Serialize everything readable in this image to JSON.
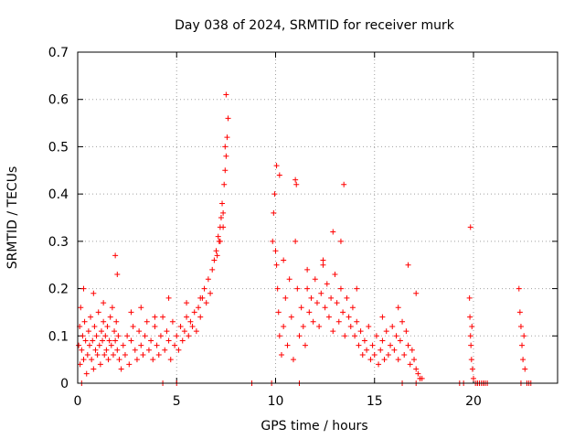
{
  "chart_data": {
    "type": "scatter",
    "title": "Day 038 of 2024, SRMTID for receiver murk",
    "xlabel": "GPS time / hours",
    "ylabel": "SRMTID / TECUs",
    "xlim": [
      0,
      24.25
    ],
    "ylim": [
      0,
      0.7
    ],
    "xticks": [
      0,
      5,
      10,
      15,
      20
    ],
    "xtick_labels": [
      "0",
      "5",
      "10",
      "15",
      "20"
    ],
    "yticks": [
      0,
      0.1,
      0.2,
      0.3,
      0.4,
      0.5,
      0.6,
      0.7
    ],
    "ytick_labels": [
      "0",
      "0.1",
      "0.2",
      "0.3",
      "0.4",
      "0.5",
      "0.6",
      "0.7"
    ],
    "grid": true,
    "marker": "plus",
    "colors": {
      "points": "#ff0000",
      "grid": "#a0a0a0",
      "axes": "#000000"
    },
    "series": [
      {
        "name": "SRMTID",
        "x": [
          0.05,
          0.1,
          0.12,
          0.15,
          0.2,
          0.25,
          0.3,
          0.35,
          0.4,
          0.45,
          0.5,
          0.55,
          0.6,
          0.65,
          0.7,
          0.75,
          0.8,
          0.85,
          0.9,
          0.95,
          1.0,
          1.05,
          1.1,
          1.15,
          1.2,
          1.25,
          1.3,
          1.35,
          1.4,
          1.45,
          1.5,
          1.55,
          1.6,
          1.65,
          1.7,
          1.75,
          1.8,
          1.85,
          1.9,
          1.95,
          2.0,
          2.05,
          2.1,
          2.2,
          2.3,
          2.4,
          2.5,
          2.6,
          2.7,
          2.8,
          2.9,
          3.0,
          3.1,
          3.2,
          3.3,
          3.4,
          3.5,
          3.6,
          3.7,
          3.8,
          3.9,
          4.0,
          4.1,
          4.2,
          4.3,
          4.4,
          4.5,
          4.6,
          4.7,
          4.8,
          4.9,
          5.0,
          5.1,
          5.2,
          5.3,
          5.4,
          5.5,
          5.6,
          5.7,
          5.8,
          5.9,
          6.0,
          6.1,
          6.2,
          6.3,
          6.4,
          6.5,
          6.6,
          6.7,
          6.8,
          6.9,
          7.0,
          7.05,
          7.1,
          7.15,
          7.2,
          7.25,
          7.3,
          7.35,
          7.4,
          7.45,
          7.5,
          7.55,
          7.6,
          9.85,
          9.9,
          9.95,
          10.0,
          10.05,
          10.1,
          10.15,
          10.2,
          10.3,
          10.4,
          10.5,
          10.6,
          10.7,
          10.8,
          10.9,
          11.0,
          11.1,
          11.2,
          11.3,
          11.4,
          11.5,
          11.6,
          11.7,
          11.8,
          11.9,
          12.0,
          12.1,
          12.2,
          12.3,
          12.4,
          12.5,
          12.6,
          12.7,
          12.8,
          12.9,
          13.0,
          13.1,
          13.2,
          13.3,
          13.4,
          13.5,
          13.6,
          13.7,
          13.8,
          13.9,
          14.0,
          14.1,
          14.2,
          14.3,
          14.4,
          14.5,
          14.6,
          14.7,
          14.8,
          14.9,
          15.0,
          15.1,
          15.2,
          15.3,
          15.4,
          15.5,
          15.6,
          15.7,
          15.8,
          15.9,
          16.0,
          16.1,
          16.2,
          16.3,
          16.4,
          16.5,
          16.6,
          16.7,
          16.8,
          16.9,
          17.0,
          17.1,
          17.2,
          17.3,
          17.4,
          19.8,
          19.82,
          19.85,
          19.87,
          19.9,
          19.92,
          19.95,
          20.0,
          20.1,
          20.2,
          20.3,
          20.4,
          20.5,
          20.6,
          20.7,
          22.3,
          22.35,
          22.4,
          22.45,
          22.5,
          22.55,
          22.6,
          22.7,
          22.8,
          0.3,
          0.8,
          1.3,
          2.7,
          3.2,
          3.9,
          4.6,
          5.5,
          6.2,
          7.2,
          7.35,
          7.45,
          7.5,
          10.05,
          10.2,
          10.4,
          11.0,
          11.05,
          11.6,
          12.4,
          12.9,
          13.3,
          13.45,
          14.1,
          15.4,
          16.2,
          16.7,
          17.1,
          17.3,
          19.85,
          0.2,
          1.9,
          2.0,
          4.3,
          5.0,
          8.8,
          9.8,
          11.2,
          16.4,
          17.1,
          19.3,
          19.5,
          20.2,
          20.5,
          22.4,
          22.9
        ],
        "y": [
          0.08,
          0.12,
          0.04,
          0.16,
          0.07,
          0.1,
          0.05,
          0.13,
          0.09,
          0.02,
          0.06,
          0.11,
          0.08,
          0.14,
          0.05,
          0.09,
          0.03,
          0.12,
          0.07,
          0.1,
          0.06,
          0.15,
          0.08,
          0.04,
          0.11,
          0.09,
          0.13,
          0.06,
          0.1,
          0.07,
          0.12,
          0.05,
          0.09,
          0.14,
          0.08,
          0.16,
          0.06,
          0.11,
          0.09,
          0.13,
          0.07,
          0.1,
          0.05,
          0.03,
          0.08,
          0.06,
          0.1,
          0.04,
          0.09,
          0.12,
          0.07,
          0.05,
          0.11,
          0.08,
          0.06,
          0.1,
          0.13,
          0.07,
          0.09,
          0.05,
          0.12,
          0.08,
          0.06,
          0.1,
          0.14,
          0.07,
          0.11,
          0.09,
          0.05,
          0.13,
          0.08,
          0.1,
          0.07,
          0.12,
          0.09,
          0.11,
          0.14,
          0.1,
          0.13,
          0.12,
          0.15,
          0.11,
          0.16,
          0.14,
          0.18,
          0.2,
          0.17,
          0.22,
          0.19,
          0.24,
          0.26,
          0.28,
          0.27,
          0.31,
          0.3,
          0.33,
          0.35,
          0.38,
          0.36,
          0.42,
          0.45,
          0.48,
          0.52,
          0.56,
          0.3,
          0.36,
          0.4,
          0.28,
          0.25,
          0.2,
          0.15,
          0.1,
          0.06,
          0.12,
          0.18,
          0.08,
          0.22,
          0.14,
          0.05,
          0.3,
          0.2,
          0.1,
          0.16,
          0.12,
          0.08,
          0.2,
          0.15,
          0.18,
          0.13,
          0.22,
          0.17,
          0.12,
          0.19,
          0.25,
          0.16,
          0.21,
          0.14,
          0.18,
          0.11,
          0.23,
          0.17,
          0.13,
          0.2,
          0.15,
          0.1,
          0.18,
          0.14,
          0.12,
          0.16,
          0.1,
          0.13,
          0.08,
          0.11,
          0.06,
          0.09,
          0.07,
          0.12,
          0.05,
          0.08,
          0.06,
          0.1,
          0.04,
          0.07,
          0.09,
          0.05,
          0.11,
          0.06,
          0.08,
          0.12,
          0.07,
          0.1,
          0.05,
          0.09,
          0.13,
          0.06,
          0.11,
          0.08,
          0.04,
          0.07,
          0.05,
          0.03,
          0.02,
          0.01,
          0.01,
          0.18,
          0.14,
          0.1,
          0.08,
          0.05,
          0.12,
          0.03,
          0.01,
          0.0,
          0.0,
          0.0,
          0.0,
          0.0,
          0.0,
          0.0,
          0.2,
          0.15,
          0.12,
          0.08,
          0.05,
          0.1,
          0.03,
          0.0,
          0.0,
          0.2,
          0.19,
          0.17,
          0.15,
          0.16,
          0.14,
          0.18,
          0.17,
          0.18,
          0.3,
          0.33,
          0.5,
          0.61,
          0.46,
          0.44,
          0.26,
          0.43,
          0.42,
          0.24,
          0.26,
          0.32,
          0.3,
          0.42,
          0.2,
          0.14,
          0.16,
          0.25,
          0.19,
          0.01,
          0.33,
          0.0,
          0.27,
          0.23,
          0.0,
          0.0,
          0.0,
          0.0,
          0.0,
          0.0,
          0.0,
          0.0,
          0.0,
          0.0,
          0.0,
          0.0,
          0.0
        ]
      }
    ]
  }
}
